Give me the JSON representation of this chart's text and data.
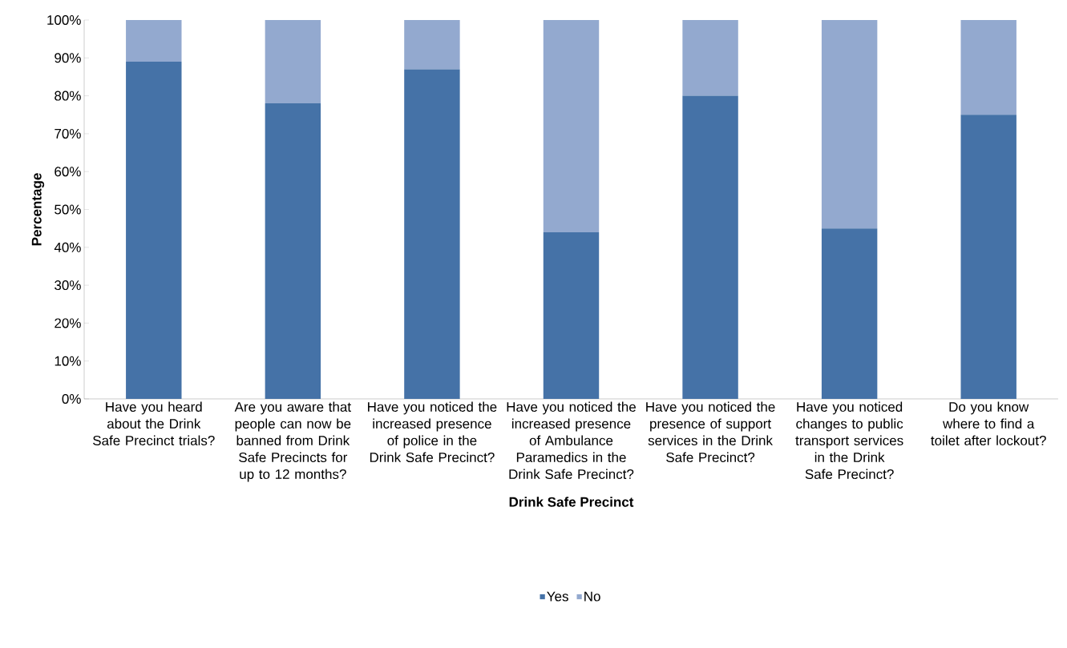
{
  "chart_data": {
    "type": "bar",
    "stacked": true,
    "xlabel": "**Drink Safe Precinct**",
    "ylabel": "**Percentage**",
    "categories": [
      "Have you heard about the Drink Safe Precinct trials?",
      "Are you aware that people can now be banned from Drink Safe Precincts for up to 12 months?",
      "Have you noticed the increased presence of police in the Drink Safe Precinct?",
      "Have you noticed the increased presence of Ambulance Paramedics in the Drink Safe Precinct?",
      "Have you noticed the presence of support services in the Drink Safe Precinct?",
      "Have you noticed changes to public transport services in the Drink Safe Precinct?",
      "Do you know where to find a toilet after lockout?"
    ],
    "series": [
      {
        "name": "Yes",
        "color": "#4572a7",
        "values": [
          89,
          78,
          87,
          44,
          80,
          45,
          75
        ]
      },
      {
        "name": "No",
        "color": "#93a9cf",
        "values": [
          11,
          22,
          13,
          56,
          20,
          55,
          25
        ]
      }
    ],
    "ylim": [
      0,
      100
    ],
    "yticks": [
      {
        "value": 0,
        "label": "0%"
      },
      {
        "value": 10,
        "label": "10%"
      },
      {
        "value": 20,
        "label": "20%"
      },
      {
        "value": 30,
        "label": "30%"
      },
      {
        "value": 40,
        "label": "40%"
      },
      {
        "value": 50,
        "label": "50%"
      },
      {
        "value": 60,
        "label": "60%"
      },
      {
        "value": 70,
        "label": "70%"
      },
      {
        "value": 80,
        "label": "80%"
      },
      {
        "value": 90,
        "label": "90%"
      },
      {
        "value": 100,
        "label": "100%"
      }
    ],
    "legend": "bottom"
  }
}
